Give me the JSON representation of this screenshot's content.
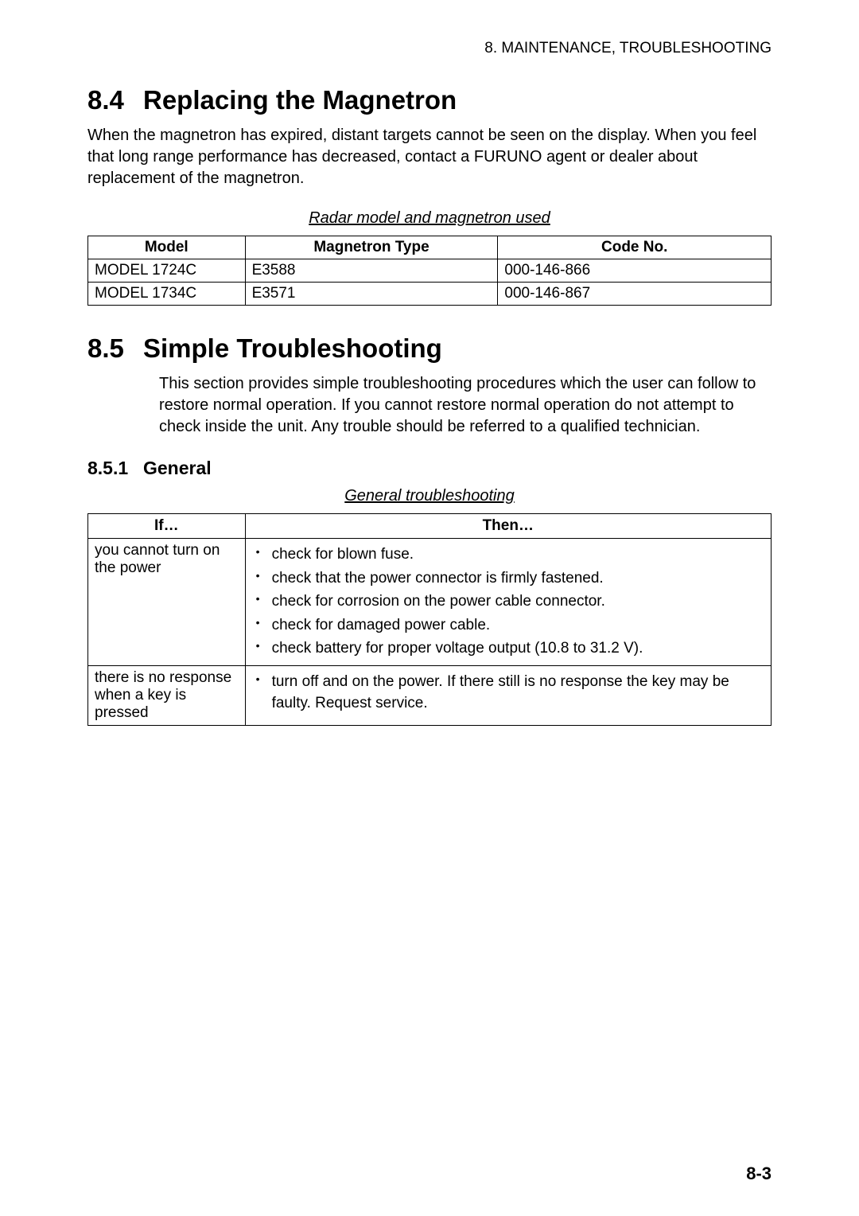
{
  "header": {
    "text": "8. MAINTENANCE, TROUBLESHOOTING"
  },
  "section84": {
    "number": "8.4",
    "title": "Replacing the Magnetron",
    "body": "When the magnetron has expired, distant targets cannot be seen on the display. When you feel that long range performance has decreased, contact a FURUNO agent or dealer about replacement of the magnetron.",
    "table_caption": "Radar model and magnetron used",
    "table": {
      "headers": [
        "Model",
        "Magnetron Type",
        "Code No."
      ],
      "rows": [
        [
          "MODEL 1724C",
          "E3588",
          "000-146-866"
        ],
        [
          "MODEL 1734C",
          "E3571",
          "000-146-867"
        ]
      ],
      "col_widths": [
        "23%",
        "37%",
        "40%"
      ]
    }
  },
  "section85": {
    "number": "8.5",
    "title": "Simple Troubleshooting",
    "body": "This section provides simple troubleshooting procedures which the user can follow to restore normal operation. If you cannot restore normal operation do not attempt to check inside the unit. Any trouble should be referred to a qualified technician.",
    "sub": {
      "number": "8.5.1",
      "title": "General",
      "table_caption": "General troubleshooting",
      "table": {
        "headers": [
          "If…",
          "Then…"
        ],
        "col_widths": [
          "23%",
          "77%"
        ],
        "rows": [
          {
            "if": "you cannot turn on the power",
            "then": [
              "check for blown fuse.",
              "check that the power connector is firmly fastened.",
              "check for corrosion on the power cable connector.",
              "check for damaged power cable.",
              "check battery for proper voltage output (10.8 to 31.2 V)."
            ]
          },
          {
            "if": "there is no response when a key is pressed",
            "then": [
              "turn off and on the power. If there still is no response the key may be faulty. Request service."
            ]
          }
        ]
      }
    }
  },
  "page_number": "8-3"
}
